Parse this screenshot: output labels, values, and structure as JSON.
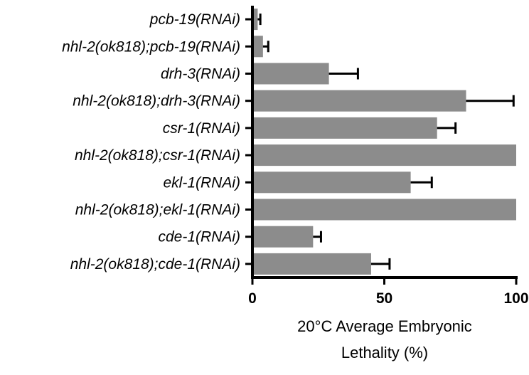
{
  "chart_data": {
    "type": "bar",
    "orientation": "horizontal",
    "categories": [
      "pcb-19(RNAi)",
      "nhl-2(ok818);pcb-19(RNAi)",
      "drh-3(RNAi)",
      "nhl-2(ok818);drh-3(RNAi)",
      "csr-1(RNAi)",
      "nhl-2(ok818);csr-1(RNAi)",
      "ekl-1(RNAi)",
      "nhl-2(ok818);ekl-1(RNAi)",
      "cde-1(RNAi)",
      "nhl-2(ok818);cde-1(RNAi)"
    ],
    "values": [
      2,
      4,
      29,
      81,
      70,
      100,
      60,
      100,
      23,
      45
    ],
    "errors": [
      1,
      2,
      11,
      18,
      7,
      0,
      8,
      0,
      3,
      7
    ],
    "xlabel_lines": [
      "20°C Average Embryonic",
      "Lethality (%)"
    ],
    "xlim": [
      0,
      100
    ],
    "xticks": [
      "0",
      "50",
      "100"
    ],
    "bar_color": "#8c8c8c",
    "axis_color": "#000000",
    "grid": false
  }
}
